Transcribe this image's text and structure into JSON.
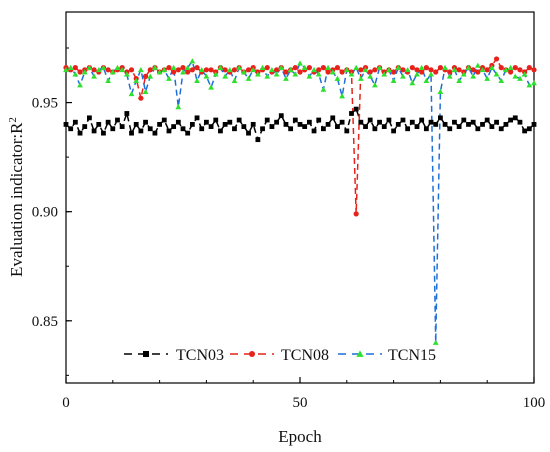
{
  "chart_data": {
    "type": "line",
    "xlabel": "Epoch",
    "ylabel_main": "Evaluation indicator:R",
    "ylabel_sup": "2",
    "xlim": [
      0,
      100
    ],
    "ylim": [
      0.8215,
      0.9915
    ],
    "xticks": [
      0,
      50,
      100
    ],
    "yticks": [
      0.85,
      0.9,
      0.95
    ],
    "xtick_labels": [
      "0",
      "50",
      "100"
    ],
    "ytick_labels": [
      "0.85",
      "0.90",
      "0.95"
    ],
    "grid": false,
    "legend_position": "bottom-center",
    "series": [
      {
        "name": "TCN03",
        "color": "#000000",
        "marker": "square",
        "dash": "dashed",
        "x": [
          0,
          1,
          2,
          3,
          4,
          5,
          6,
          7,
          8,
          9,
          10,
          11,
          12,
          13,
          14,
          15,
          16,
          17,
          18,
          19,
          20,
          21,
          22,
          23,
          24,
          25,
          26,
          27,
          28,
          29,
          30,
          31,
          32,
          33,
          34,
          35,
          36,
          37,
          38,
          39,
          40,
          41,
          42,
          43,
          44,
          45,
          46,
          47,
          48,
          49,
          50,
          51,
          52,
          53,
          54,
          55,
          56,
          57,
          58,
          59,
          60,
          61,
          62,
          63,
          64,
          65,
          66,
          67,
          68,
          69,
          70,
          71,
          72,
          73,
          74,
          75,
          76,
          77,
          78,
          79,
          80,
          81,
          82,
          83,
          84,
          85,
          86,
          87,
          88,
          89,
          90,
          91,
          92,
          93,
          94,
          95,
          96,
          97,
          98,
          99,
          100
        ],
        "values": [
          0.94,
          0.938,
          0.941,
          0.936,
          0.939,
          0.943,
          0.937,
          0.94,
          0.936,
          0.941,
          0.938,
          0.942,
          0.939,
          0.945,
          0.936,
          0.94,
          0.937,
          0.941,
          0.938,
          0.936,
          0.94,
          0.942,
          0.937,
          0.939,
          0.941,
          0.938,
          0.936,
          0.94,
          0.943,
          0.938,
          0.941,
          0.939,
          0.942,
          0.937,
          0.94,
          0.941,
          0.938,
          0.942,
          0.939,
          0.936,
          0.94,
          0.933,
          0.938,
          0.942,
          0.939,
          0.941,
          0.944,
          0.94,
          0.938,
          0.942,
          0.94,
          0.939,
          0.941,
          0.937,
          0.942,
          0.938,
          0.94,
          0.943,
          0.939,
          0.941,
          0.937,
          0.945,
          0.947,
          0.941,
          0.939,
          0.942,
          0.938,
          0.941,
          0.939,
          0.942,
          0.937,
          0.94,
          0.942,
          0.938,
          0.941,
          0.939,
          0.942,
          0.938,
          0.941,
          0.94,
          0.943,
          0.94,
          0.938,
          0.941,
          0.939,
          0.942,
          0.94,
          0.941,
          0.938,
          0.94,
          0.942,
          0.939,
          0.941,
          0.938,
          0.94,
          0.942,
          0.943,
          0.941,
          0.937,
          0.938,
          0.94
        ]
      },
      {
        "name": "TCN08",
        "color": "#e8211a",
        "marker": "circle",
        "dash": "dashed",
        "x": [
          0,
          1,
          2,
          3,
          4,
          5,
          6,
          7,
          8,
          9,
          10,
          11,
          12,
          13,
          14,
          15,
          16,
          17,
          18,
          19,
          20,
          21,
          22,
          23,
          24,
          25,
          26,
          27,
          28,
          29,
          30,
          31,
          32,
          33,
          34,
          35,
          36,
          37,
          38,
          39,
          40,
          41,
          42,
          43,
          44,
          45,
          46,
          47,
          48,
          49,
          50,
          51,
          52,
          53,
          54,
          55,
          56,
          57,
          58,
          59,
          60,
          61,
          62,
          63,
          64,
          65,
          66,
          67,
          68,
          69,
          70,
          71,
          72,
          73,
          74,
          75,
          76,
          77,
          78,
          79,
          80,
          81,
          82,
          83,
          84,
          85,
          86,
          87,
          88,
          89,
          90,
          91,
          92,
          93,
          94,
          95,
          96,
          97,
          98,
          99,
          100
        ],
        "values": [
          0.966,
          0.965,
          0.966,
          0.964,
          0.965,
          0.966,
          0.965,
          0.964,
          0.966,
          0.965,
          0.964,
          0.965,
          0.966,
          0.964,
          0.965,
          0.961,
          0.952,
          0.962,
          0.965,
          0.966,
          0.964,
          0.965,
          0.966,
          0.964,
          0.965,
          0.966,
          0.964,
          0.965,
          0.966,
          0.964,
          0.965,
          0.965,
          0.964,
          0.966,
          0.965,
          0.964,
          0.965,
          0.966,
          0.964,
          0.965,
          0.966,
          0.964,
          0.965,
          0.966,
          0.964,
          0.965,
          0.966,
          0.964,
          0.965,
          0.966,
          0.964,
          0.965,
          0.966,
          0.964,
          0.965,
          0.966,
          0.964,
          0.965,
          0.966,
          0.964,
          0.965,
          0.964,
          0.899,
          0.965,
          0.966,
          0.964,
          0.965,
          0.966,
          0.964,
          0.965,
          0.964,
          0.966,
          0.965,
          0.964,
          0.966,
          0.965,
          0.964,
          0.966,
          0.965,
          0.964,
          0.966,
          0.965,
          0.964,
          0.966,
          0.965,
          0.964,
          0.966,
          0.965,
          0.964,
          0.966,
          0.965,
          0.967,
          0.97,
          0.966,
          0.965,
          0.964,
          0.966,
          0.965,
          0.964,
          0.966,
          0.965
        ]
      },
      {
        "name": "TCN15",
        "color": "#1f6fd8",
        "marker": "triangle",
        "dash": "dashed",
        "markerColor": "#2ee02e",
        "x": [
          0,
          1,
          2,
          3,
          4,
          5,
          6,
          7,
          8,
          9,
          10,
          11,
          12,
          13,
          14,
          15,
          16,
          17,
          18,
          19,
          20,
          21,
          22,
          23,
          24,
          25,
          26,
          27,
          28,
          29,
          30,
          31,
          32,
          33,
          34,
          35,
          36,
          37,
          38,
          39,
          40,
          41,
          42,
          43,
          44,
          45,
          46,
          47,
          48,
          49,
          50,
          51,
          52,
          53,
          54,
          55,
          56,
          57,
          58,
          59,
          60,
          61,
          62,
          63,
          64,
          65,
          66,
          67,
          68,
          69,
          70,
          71,
          72,
          73,
          74,
          75,
          76,
          77,
          78,
          79,
          80,
          81,
          82,
          83,
          84,
          85,
          86,
          87,
          88,
          89,
          90,
          91,
          92,
          93,
          94,
          95,
          96,
          97,
          98,
          99,
          100
        ],
        "values": [
          0.965,
          0.966,
          0.963,
          0.958,
          0.964,
          0.966,
          0.962,
          0.965,
          0.966,
          0.96,
          0.964,
          0.966,
          0.965,
          0.963,
          0.954,
          0.96,
          0.965,
          0.955,
          0.962,
          0.966,
          0.964,
          0.965,
          0.961,
          0.966,
          0.948,
          0.964,
          0.966,
          0.969,
          0.96,
          0.965,
          0.962,
          0.957,
          0.963,
          0.966,
          0.962,
          0.965,
          0.96,
          0.966,
          0.964,
          0.961,
          0.965,
          0.963,
          0.966,
          0.962,
          0.965,
          0.963,
          0.966,
          0.961,
          0.965,
          0.963,
          0.968,
          0.966,
          0.962,
          0.965,
          0.963,
          0.956,
          0.966,
          0.964,
          0.961,
          0.953,
          0.965,
          0.963,
          0.966,
          0.961,
          0.965,
          0.962,
          0.958,
          0.966,
          0.963,
          0.965,
          0.96,
          0.966,
          0.962,
          0.965,
          0.959,
          0.963,
          0.966,
          0.96,
          0.963,
          0.84,
          0.955,
          0.966,
          0.962,
          0.965,
          0.96,
          0.963,
          0.966,
          0.962,
          0.967,
          0.965,
          0.961,
          0.966,
          0.963,
          0.96,
          0.965,
          0.966,
          0.962,
          0.961,
          0.963,
          0.958,
          0.959
        ]
      }
    ]
  }
}
